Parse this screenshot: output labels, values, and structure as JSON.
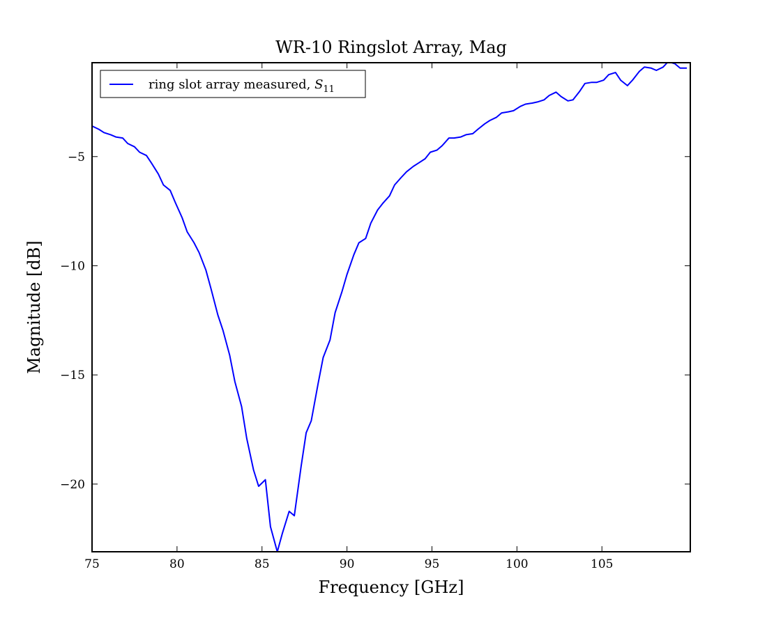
{
  "chart_data": {
    "type": "line",
    "title": "WR-10 Ringslot Array, Mag",
    "xlabel": "Frequency [GHz]",
    "ylabel": "Magnitude [dB]",
    "xlim": [
      75,
      110.2
    ],
    "ylim": [
      -23.1,
      -0.7
    ],
    "xticks": [
      75,
      80,
      85,
      90,
      95,
      100,
      105
    ],
    "xtick_labels": [
      "75",
      "80",
      "85",
      "90",
      "95",
      "100",
      "105"
    ],
    "yticks": [
      -5,
      -10,
      -15,
      -20
    ],
    "ytick_labels": [
      "−5",
      "−10",
      "−15",
      "−20"
    ],
    "grid": false,
    "legend": {
      "placement": "top-left",
      "text_main": "ring slot array measured, ",
      "text_symbol": "S",
      "text_sub": "11"
    },
    "series": [
      {
        "name": "ring slot array measured, S11",
        "color": "#0000ff",
        "x": [
          75.0,
          75.4,
          75.7,
          76.1,
          76.4,
          76.8,
          77.1,
          77.5,
          77.8,
          78.2,
          78.5,
          78.9,
          79.2,
          79.6,
          79.9,
          80.3,
          80.6,
          81.0,
          81.3,
          81.7,
          82.0,
          82.4,
          82.7,
          83.1,
          83.4,
          83.8,
          84.1,
          84.5,
          84.8,
          85.2,
          85.5,
          85.9,
          86.2,
          86.6,
          86.9,
          87.3,
          87.6,
          87.9,
          88.3,
          88.6,
          89.0,
          89.3,
          89.7,
          90.0,
          90.4,
          90.7,
          91.1,
          91.4,
          91.8,
          92.1,
          92.5,
          92.8,
          93.2,
          93.5,
          93.9,
          94.2,
          94.6,
          94.9,
          95.3,
          95.6,
          96.0,
          96.3,
          96.7,
          97.0,
          97.4,
          97.7,
          98.1,
          98.4,
          98.8,
          99.1,
          99.5,
          99.8,
          100.2,
          100.5,
          100.9,
          101.2,
          101.6,
          101.9,
          102.3,
          102.6,
          103.0,
          103.3,
          103.7,
          104.0,
          104.4,
          104.7,
          105.1,
          105.4,
          105.8,
          106.1,
          106.5,
          106.8,
          107.2,
          107.5,
          107.9,
          108.2,
          108.6,
          108.9,
          109.3,
          109.6,
          110.0
        ],
        "y": [
          -3.6,
          -3.75,
          -3.9,
          -4.0,
          -4.1,
          -4.15,
          -4.4,
          -4.55,
          -4.8,
          -4.95,
          -5.3,
          -5.8,
          -6.3,
          -6.55,
          -7.1,
          -7.8,
          -8.45,
          -8.95,
          -9.4,
          -10.2,
          -11.05,
          -12.25,
          -12.95,
          -14.1,
          -15.3,
          -16.45,
          -17.9,
          -19.35,
          -20.1,
          -19.8,
          -21.95,
          -23.1,
          -22.25,
          -21.25,
          -21.45,
          -19.2,
          -17.65,
          -17.1,
          -15.4,
          -14.2,
          -13.4,
          -12.15,
          -11.2,
          -10.4,
          -9.5,
          -8.95,
          -8.75,
          -8.05,
          -7.45,
          -7.15,
          -6.8,
          -6.3,
          -5.95,
          -5.7,
          -5.45,
          -5.3,
          -5.1,
          -4.8,
          -4.7,
          -4.5,
          -4.15,
          -4.15,
          -4.1,
          -4.0,
          -3.95,
          -3.75,
          -3.5,
          -3.35,
          -3.2,
          -3.0,
          -2.95,
          -2.9,
          -2.7,
          -2.6,
          -2.55,
          -2.5,
          -2.4,
          -2.2,
          -2.05,
          -2.25,
          -2.45,
          -2.4,
          -2.0,
          -1.65,
          -1.6,
          -1.6,
          -1.5,
          -1.25,
          -1.15,
          -1.5,
          -1.75,
          -1.5,
          -1.1,
          -0.9,
          -0.95,
          -1.05,
          -0.9,
          -0.65,
          -0.75,
          -0.95,
          -0.95
        ]
      }
    ]
  }
}
